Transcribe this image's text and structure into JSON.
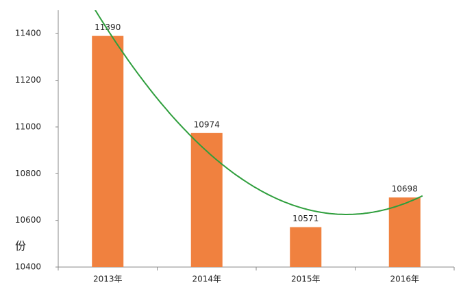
{
  "chart_data": {
    "type": "bar",
    "y_label": "份",
    "categories": [
      "2013年",
      "2014年",
      "2015年",
      "2016年"
    ],
    "values": [
      11390,
      10974,
      10571,
      10698
    ],
    "color": "#f0813f",
    "ylim": [
      10400,
      11500
    ],
    "yticks": [
      10400,
      10600,
      10800,
      11000,
      11200,
      11400
    ],
    "trendline": {
      "kind": "polynomial",
      "order": 2,
      "color": "#2e9e3c"
    }
  }
}
